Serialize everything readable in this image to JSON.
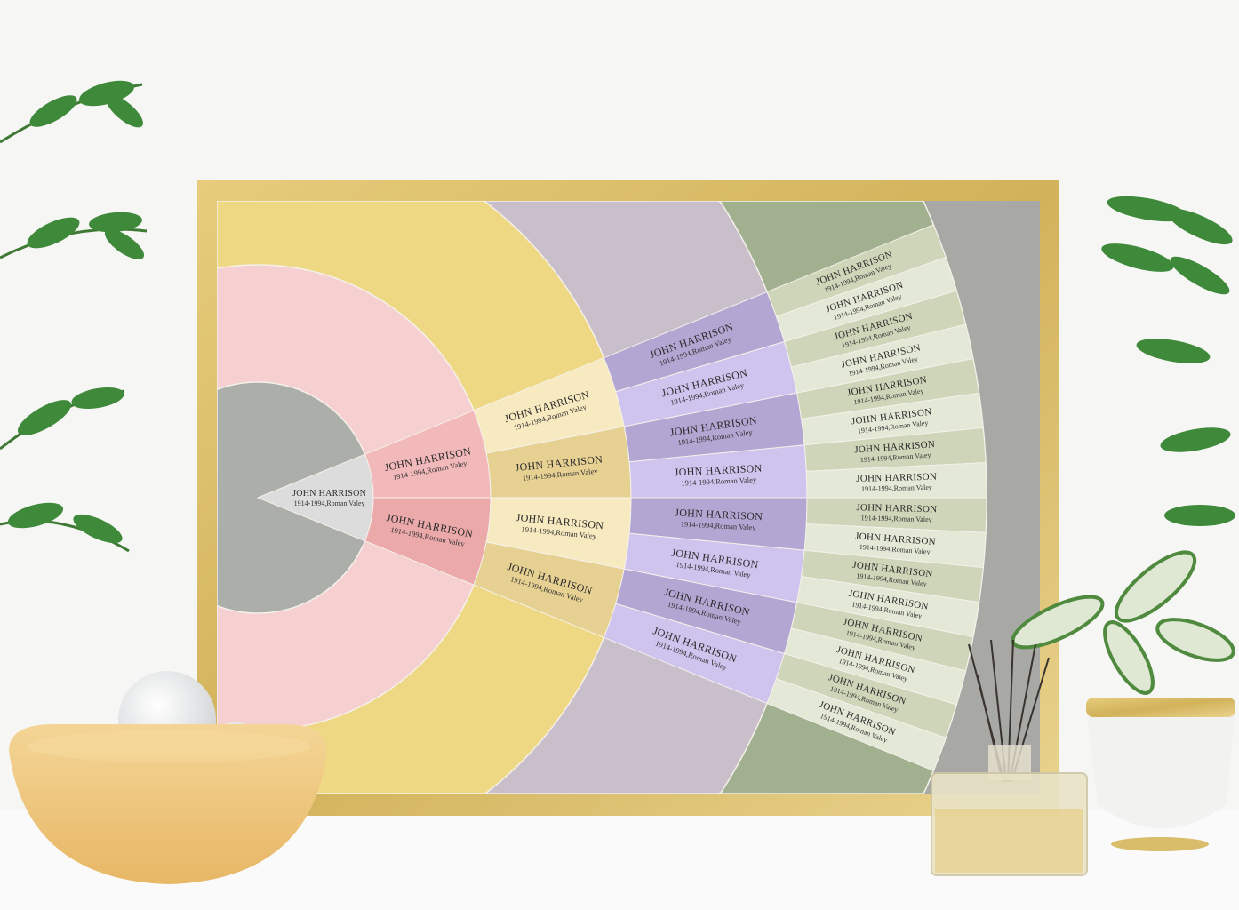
{
  "poster": {
    "colors": {
      "frame": "#d9bd6a",
      "center": "#acaea9",
      "root_wedge": "#dcdcdc",
      "ring2_bg": "#f6cfd0",
      "ring2_wedges": [
        "#f2b9ba",
        "#eba9aa"
      ],
      "ring3_bg": "#efd883",
      "ring3_wedges": [
        "#f8eac0",
        "#e6d193"
      ],
      "ring4_bg": "#c9bfcb",
      "ring4_wedges": [
        "#b3a6d3",
        "#cfc4ee"
      ],
      "ring5_bg": "#a1b08f",
      "ring5_wedges": [
        "#cfd5b9",
        "#e4e8d6"
      ],
      "outer": "#a8a9a5"
    },
    "generations": [
      {
        "people": [
          {
            "name": "JOHN HARRISON",
            "details": "1914-1994,Roman Valey"
          }
        ]
      },
      {
        "people": [
          {
            "name": "JOHN HARRISON",
            "details": "1914-1994,Roman Valey"
          },
          {
            "name": "JOHN HARRISON",
            "details": "1914-1994,Roman Valey"
          }
        ]
      },
      {
        "people": [
          {
            "name": "JOHN HARRISON",
            "details": "1914-1994,Roman Valey"
          },
          {
            "name": "JOHN HARRISON",
            "details": "1914-1994,Roman Valey"
          },
          {
            "name": "JOHN HARRISON",
            "details": "1914-1994,Roman Valey"
          },
          {
            "name": "JOHN HARRISON",
            "details": "1914-1994,Roman Valey"
          }
        ]
      },
      {
        "people": [
          {
            "name": "JOHN HARRISON",
            "details": "1914-1994,Roman Valey"
          },
          {
            "name": "JOHN HARRISON",
            "details": "1914-1994,Roman Valey"
          },
          {
            "name": "JOHN HARRISON",
            "details": "1914-1994,Roman Valey"
          },
          {
            "name": "JOHN HARRISON",
            "details": "1914-1994,Roman Valey"
          },
          {
            "name": "JOHN HARRISON",
            "details": "1914-1994,Roman Valey"
          },
          {
            "name": "JOHN HARRISON",
            "details": "1914-1994,Roman Valey"
          },
          {
            "name": "JOHN HARRISON",
            "details": "1914-1994,Roman Valey"
          },
          {
            "name": "JOHN HARRISON",
            "details": "1914-1994,Roman Valey"
          }
        ]
      },
      {
        "people": [
          {
            "name": "JOHN HARRISON",
            "details": "1914-1994,Roman Valey"
          },
          {
            "name": "JOHN HARRISON",
            "details": "1914-1994,Roman Valey"
          },
          {
            "name": "JOHN HARRISON",
            "details": "1914-1994,Roman Valey"
          },
          {
            "name": "JOHN HARRISON",
            "details": "1914-1994,Roman Valey"
          },
          {
            "name": "JOHN HARRISON",
            "details": "1914-1994,Roman Valey"
          },
          {
            "name": "JOHN HARRISON",
            "details": "1914-1994,Roman Valey"
          },
          {
            "name": "JOHN HARRISON",
            "details": "1914-1994,Roman Valey"
          },
          {
            "name": "JOHN HARRISON",
            "details": "1914-1994,Roman Valey"
          },
          {
            "name": "JOHN HARRISON",
            "details": "1914-1994,Roman Valey"
          },
          {
            "name": "JOHN HARRISON",
            "details": "1914-1994,Roman Valey"
          },
          {
            "name": "JOHN HARRISON",
            "details": "1914-1994,Roman Valey"
          },
          {
            "name": "JOHN HARRISON",
            "details": "1914-1994,Roman Valey"
          },
          {
            "name": "JOHN HARRISON",
            "details": "1914-1994,Roman Valey"
          },
          {
            "name": "JOHN HARRISON",
            "details": "1914-1994,Roman Valey"
          },
          {
            "name": "JOHN HARRISON",
            "details": "1914-1994,Roman Valey"
          },
          {
            "name": "JOHN HARRISON",
            "details": "1914-1994,Roman Valey"
          }
        ]
      }
    ]
  }
}
